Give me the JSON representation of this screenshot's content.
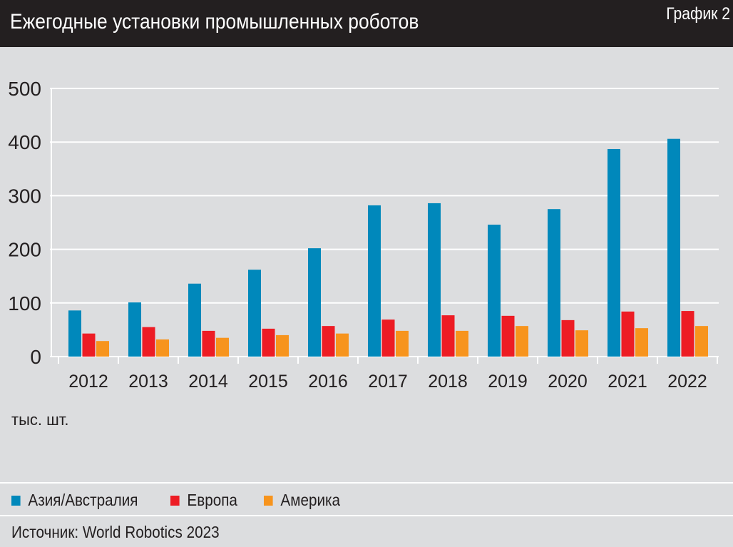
{
  "header": {
    "title": "Ежегодные установки промышленных роботов",
    "chart_number": "График 2"
  },
  "source": "Источник: World Robotics 2023",
  "colors": {
    "Азия/Австралия": "#0088bb",
    "Европа": "#ed1c24",
    "Америка": "#f7941d",
    "background": "#dcdddf",
    "header": "#231f20"
  },
  "chart_data": {
    "type": "bar",
    "categories": [
      "2012",
      "2013",
      "2014",
      "2015",
      "2016",
      "2017",
      "2018",
      "2019",
      "2020",
      "2021",
      "2022"
    ],
    "series": [
      {
        "name": "Азия/Австралия",
        "values": [
          86,
          101,
          136,
          162,
          202,
          282,
          286,
          246,
          275,
          387,
          406
        ]
      },
      {
        "name": "Европа",
        "values": [
          43,
          55,
          48,
          52,
          57,
          69,
          77,
          76,
          68,
          84,
          85
        ]
      },
      {
        "name": "Америка",
        "values": [
          29,
          32,
          35,
          40,
          43,
          48,
          48,
          57,
          49,
          53,
          57
        ]
      }
    ],
    "ylabel": "тыс. шт.",
    "ylim": [
      0,
      500
    ],
    "yticks": [
      "0",
      "100",
      "200",
      "300",
      "400",
      "500"
    ],
    "grid": true,
    "legend": "bottom-left"
  }
}
